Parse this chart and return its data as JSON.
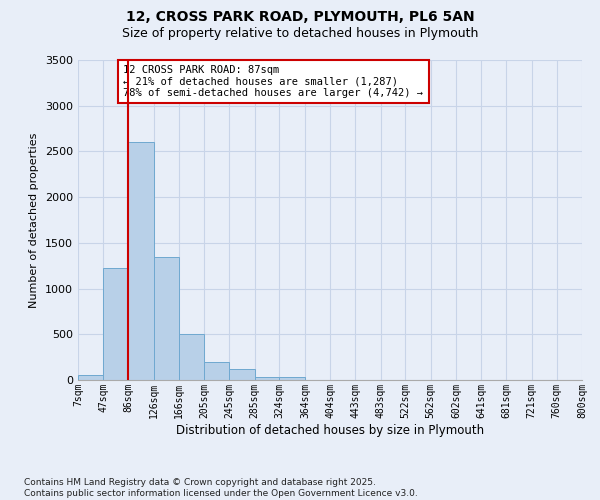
{
  "title1": "12, CROSS PARK ROAD, PLYMOUTH, PL6 5AN",
  "title2": "Size of property relative to detached houses in Plymouth",
  "xlabel": "Distribution of detached houses by size in Plymouth",
  "ylabel": "Number of detached properties",
  "annotation_line1": "12 CROSS PARK ROAD: 87sqm",
  "annotation_line2": "← 21% of detached houses are smaller (1,287)",
  "annotation_line3": "78% of semi-detached houses are larger (4,742) →",
  "categories": [
    "7sqm",
    "47sqm",
    "86sqm",
    "126sqm",
    "166sqm",
    "205sqm",
    "245sqm",
    "285sqm",
    "324sqm",
    "364sqm",
    "404sqm",
    "443sqm",
    "483sqm",
    "522sqm",
    "562sqm",
    "602sqm",
    "641sqm",
    "681sqm",
    "721sqm",
    "760sqm",
    "800sqm"
  ],
  "bar_heights": [
    55,
    1230,
    2600,
    1350,
    500,
    200,
    120,
    30,
    30,
    0,
    0,
    0,
    0,
    0,
    0,
    0,
    0,
    0,
    0,
    0,
    0
  ],
  "bin_edges": [
    7,
    47,
    86,
    126,
    166,
    205,
    245,
    285,
    324,
    364,
    404,
    443,
    483,
    522,
    562,
    602,
    641,
    681,
    721,
    760,
    800
  ],
  "bar_color": "#b8d0e8",
  "bar_edge_color": "#6fa8d0",
  "vline_color": "#cc0000",
  "vline_x": 86,
  "grid_color": "#c8d4e8",
  "bg_color": "#e8eef8",
  "annotation_box_color": "#ffffff",
  "annotation_box_edge": "#cc0000",
  "ylim": [
    0,
    3500
  ],
  "yticks": [
    0,
    500,
    1000,
    1500,
    2000,
    2500,
    3000,
    3500
  ],
  "footnote1": "Contains HM Land Registry data © Crown copyright and database right 2025.",
  "footnote2": "Contains public sector information licensed under the Open Government Licence v3.0."
}
